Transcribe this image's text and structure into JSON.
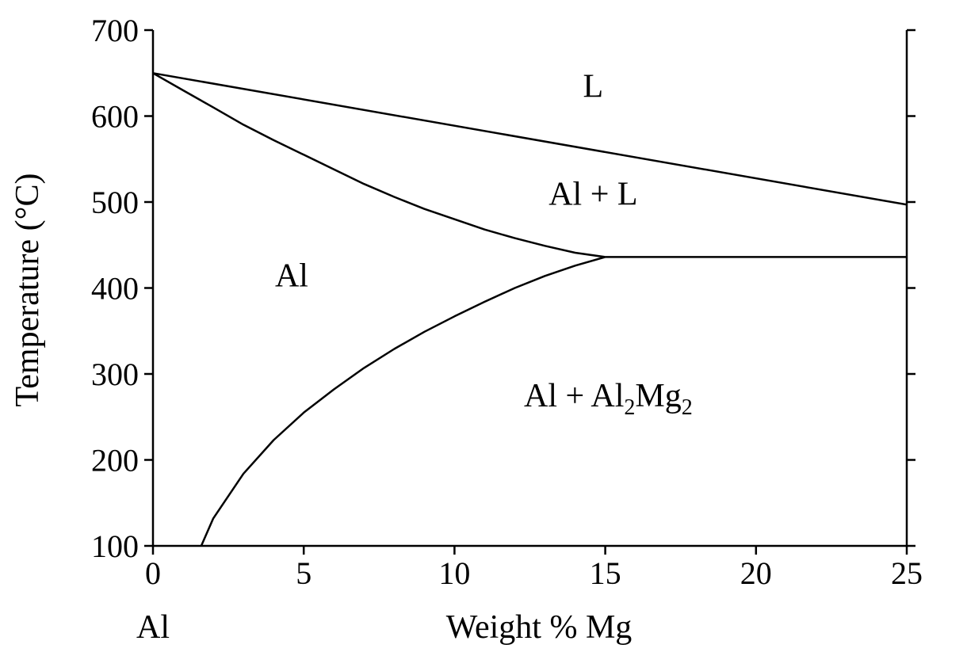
{
  "chart_data": {
    "type": "line",
    "title": "",
    "xlabel": "Weight % Mg",
    "ylabel": "Temperature (°C)",
    "x_end_label": "Al",
    "xlim": [
      0,
      25
    ],
    "ylim": [
      100,
      700
    ],
    "x_ticks": [
      0,
      5,
      10,
      15,
      20,
      25
    ],
    "y_ticks": [
      100,
      200,
      300,
      400,
      500,
      600,
      700
    ],
    "grid": false,
    "series": [
      {
        "id": "liquidus",
        "points": [
          [
            0,
            650
          ],
          [
            25,
            497
          ]
        ]
      },
      {
        "id": "solidus",
        "points": [
          [
            0,
            650
          ],
          [
            1,
            630
          ],
          [
            2,
            610
          ],
          [
            3,
            590
          ],
          [
            4,
            572
          ],
          [
            5,
            555
          ],
          [
            6,
            538
          ],
          [
            7,
            521
          ],
          [
            8,
            506
          ],
          [
            9,
            492
          ],
          [
            10,
            480
          ],
          [
            11,
            468
          ],
          [
            12,
            458
          ],
          [
            13,
            449
          ],
          [
            14,
            441
          ],
          [
            15,
            436
          ]
        ]
      },
      {
        "id": "eutectic",
        "points": [
          [
            15,
            436
          ],
          [
            25,
            436
          ]
        ]
      },
      {
        "id": "solvus",
        "points": [
          [
            1.6,
            100
          ],
          [
            2,
            132
          ],
          [
            3,
            184
          ],
          [
            4,
            223
          ],
          [
            5,
            255
          ],
          [
            6,
            282
          ],
          [
            7,
            307
          ],
          [
            8,
            329
          ],
          [
            9,
            349
          ],
          [
            10,
            367
          ],
          [
            11,
            384
          ],
          [
            12,
            400
          ],
          [
            13,
            414
          ],
          [
            14,
            426
          ],
          [
            15,
            436
          ]
        ]
      }
    ],
    "regions": [
      {
        "text": "L",
        "x": 14.6,
        "y": 622
      },
      {
        "text": "Al + L",
        "x": 14.6,
        "y": 497
      },
      {
        "text": "Al",
        "x": 4.6,
        "y": 402
      },
      {
        "parts": [
          "Al + Al",
          "2",
          "Mg",
          "2"
        ],
        "x": 15.1,
        "y": 262
      }
    ]
  }
}
